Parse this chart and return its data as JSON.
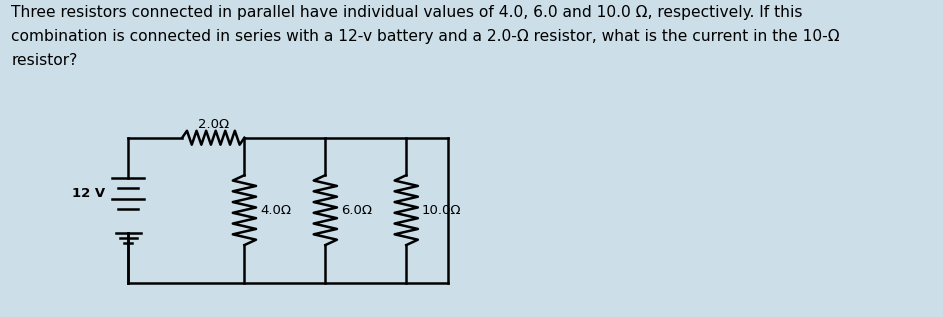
{
  "bg_color": "#ccdee8",
  "circuit_bg": "#ffffff",
  "text_color": "#000000",
  "title_text": "Three resistors connected in parallel have individual values of 4.0, 6.0 and 10.0 Ω, respectively. If this\ncombination is connected in series with a 12-v battery and a 2.0-Ω resistor, what is the current in the 10-Ω\nresistor?",
  "title_fontsize": 11.2,
  "resistor_2ohm_label": "2.0Ω",
  "resistor_4ohm_label": "4.0Ω",
  "resistor_6ohm_label": "6.0Ω",
  "resistor_10ohm_label": "10.0Ω",
  "battery_label": "12 V"
}
